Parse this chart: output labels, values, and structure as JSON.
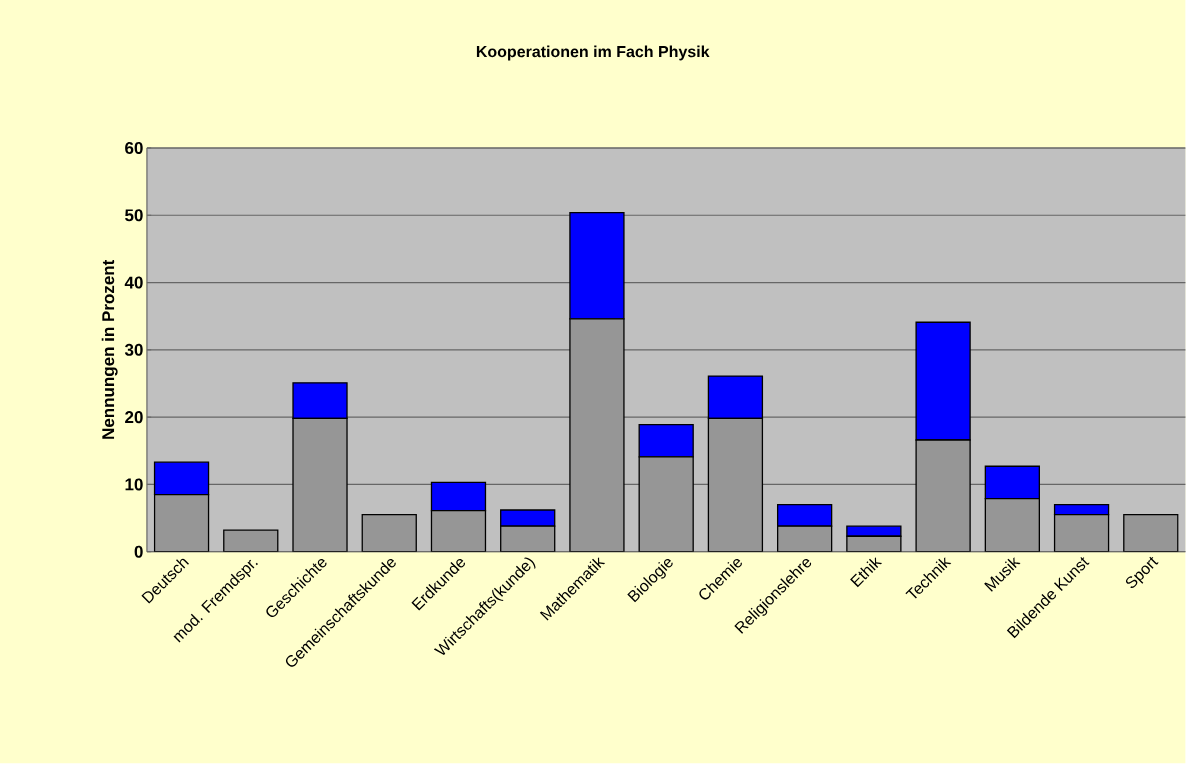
{
  "chart_data": {
    "type": "bar",
    "title": "Kooperationen im Fach Physik",
    "ylabel": "Nennungen in Prozent",
    "categories": [
      "Deutsch",
      "mod. Fremdspr.",
      "Geschichte",
      "Gemeinschaftskunde",
      "Erdkunde",
      "Wirtschafts(kunde)",
      "Mathematik",
      "Biologie",
      "Chemie",
      "Religionslehre",
      "Ethik",
      "Technik",
      "Musik",
      "Bildende Kunst",
      "Sport"
    ],
    "stacked": true,
    "series": [
      {
        "color": "#969696",
        "values": [
          8.5,
          3.2,
          19.8,
          5.5,
          6.1,
          3.8,
          34.6,
          14.1,
          19.8,
          3.8,
          2.3,
          16.6,
          7.9,
          5.5,
          5.5
        ]
      },
      {
        "color": "#0000ff",
        "values": [
          4.8,
          null,
          5.3,
          null,
          4.2,
          2.4,
          15.8,
          4.8,
          6.3,
          3.2,
          1.5,
          17.5,
          4.8,
          1.5,
          null
        ]
      }
    ],
    "ylim": [
      0,
      60
    ],
    "yticks": [
      0,
      10,
      20,
      30,
      40,
      50,
      60
    ],
    "grid": "y"
  }
}
